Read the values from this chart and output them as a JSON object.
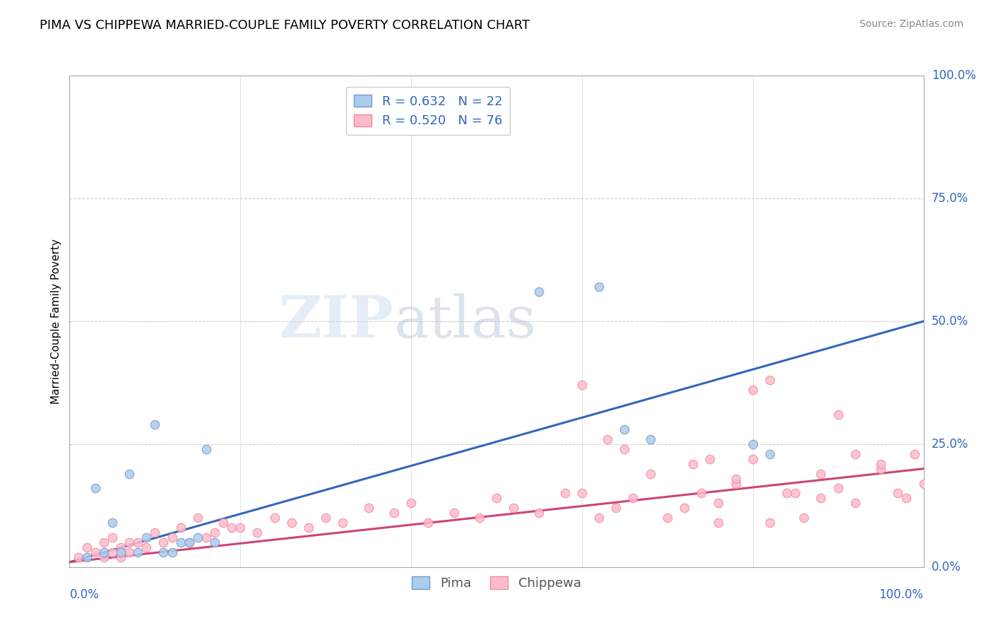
{
  "title": "PIMA VS CHIPPEWA MARRIED-COUPLE FAMILY POVERTY CORRELATION CHART",
  "source": "Source: ZipAtlas.com",
  "ylabel": "Married-Couple Family Poverty",
  "ytick_labels": [
    "100.0%",
    "75.0%",
    "50.0%",
    "25.0%",
    "0.0%"
  ],
  "ytick_values": [
    100,
    75,
    50,
    25,
    0
  ],
  "xtick_left": "0.0%",
  "xtick_right": "100.0%",
  "xlim": [
    0,
    100
  ],
  "ylim": [
    0,
    100
  ],
  "background_color": "#ffffff",
  "watermark_zip": "ZIP",
  "watermark_atlas": "atlas",
  "pima_color": "#aaccee",
  "pima_edge_color": "#7799cc",
  "chippewa_color": "#ffbbcc",
  "chippewa_edge_color": "#ee8899",
  "pima_line_color": "#3366bb",
  "chippewa_line_color": "#cc4477",
  "legend_pima_R": "0.632",
  "legend_pima_N": "22",
  "legend_chippewa_R": "0.520",
  "legend_chippewa_N": "76",
  "pima_line_x0": 0,
  "pima_line_y0": 1,
  "pima_line_x1": 100,
  "pima_line_y1": 50,
  "chippewa_line_x0": 0,
  "chippewa_line_y0": 1,
  "chippewa_line_x1": 100,
  "chippewa_line_y1": 20,
  "pima_x": [
    2,
    3,
    4,
    5,
    6,
    7,
    8,
    9,
    10,
    11,
    12,
    13,
    14,
    15,
    16,
    17,
    55,
    62,
    65,
    68,
    80,
    82
  ],
  "pima_y": [
    2,
    16,
    3,
    9,
    3,
    19,
    3,
    6,
    29,
    3,
    3,
    5,
    5,
    6,
    24,
    5,
    56,
    57,
    28,
    26,
    25,
    23
  ],
  "chippewa_x": [
    1,
    2,
    3,
    4,
    4,
    5,
    5,
    6,
    6,
    7,
    7,
    8,
    9,
    10,
    11,
    12,
    13,
    14,
    15,
    16,
    17,
    18,
    19,
    20,
    22,
    24,
    26,
    28,
    30,
    32,
    35,
    38,
    40,
    42,
    45,
    48,
    50,
    52,
    55,
    58,
    60,
    62,
    64,
    66,
    68,
    70,
    72,
    74,
    76,
    78,
    80,
    82,
    85,
    88,
    90,
    92,
    95,
    98,
    100,
    63,
    65,
    73,
    75,
    76,
    78,
    80,
    82,
    84,
    86,
    88,
    90,
    92,
    95,
    97,
    99,
    60
  ],
  "chippewa_y": [
    2,
    4,
    3,
    5,
    2,
    6,
    3,
    4,
    2,
    3,
    5,
    5,
    4,
    7,
    5,
    6,
    8,
    5,
    10,
    6,
    7,
    9,
    8,
    8,
    7,
    10,
    9,
    8,
    10,
    9,
    12,
    11,
    13,
    9,
    11,
    10,
    14,
    12,
    11,
    15,
    37,
    10,
    12,
    14,
    19,
    10,
    12,
    15,
    13,
    17,
    36,
    38,
    15,
    14,
    16,
    13,
    20,
    14,
    17,
    26,
    24,
    21,
    22,
    9,
    18,
    22,
    9,
    15,
    10,
    19,
    31,
    23,
    21,
    15,
    23,
    15
  ],
  "grid_color": "#cccccc",
  "title_fontsize": 13,
  "axis_label_fontsize": 11,
  "legend_fontsize": 13,
  "tick_fontsize": 12,
  "marker_size": 9
}
